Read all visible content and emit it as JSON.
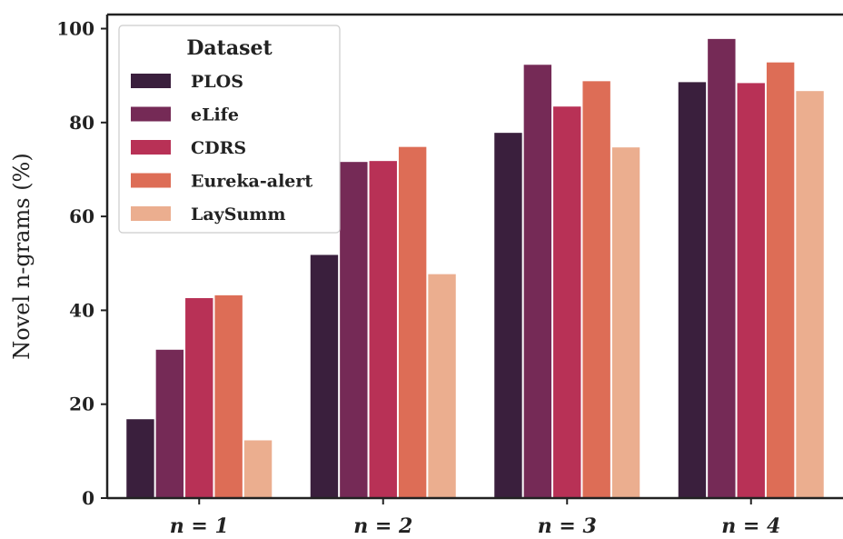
{
  "chart_data": {
    "type": "bar",
    "title": "",
    "xlabel": "",
    "ylabel": "Novel n-grams (%)",
    "ylim": [
      0,
      103
    ],
    "yticks": [
      0,
      20,
      40,
      60,
      80,
      100
    ],
    "categories": [
      "n = 1",
      "n = 2",
      "n = 3",
      "n = 4"
    ],
    "legend": {
      "title": "Dataset",
      "position": "top-left"
    },
    "grid": false,
    "series": [
      {
        "name": "PLOS",
        "color": "#3a1f3d",
        "values": [
          16.8,
          51.8,
          77.8,
          88.6
        ]
      },
      {
        "name": "eLife",
        "color": "#752a56",
        "values": [
          31.6,
          71.6,
          92.3,
          97.8
        ]
      },
      {
        "name": "CDRS",
        "color": "#b83156",
        "values": [
          42.6,
          71.8,
          83.4,
          88.4
        ]
      },
      {
        "name": "Eureka-alert",
        "color": "#dd6d56",
        "values": [
          43.2,
          74.8,
          88.8,
          92.8
        ]
      },
      {
        "name": "LaySumm",
        "color": "#ebae8f",
        "values": [
          12.3,
          47.7,
          74.7,
          86.7
        ]
      }
    ]
  }
}
